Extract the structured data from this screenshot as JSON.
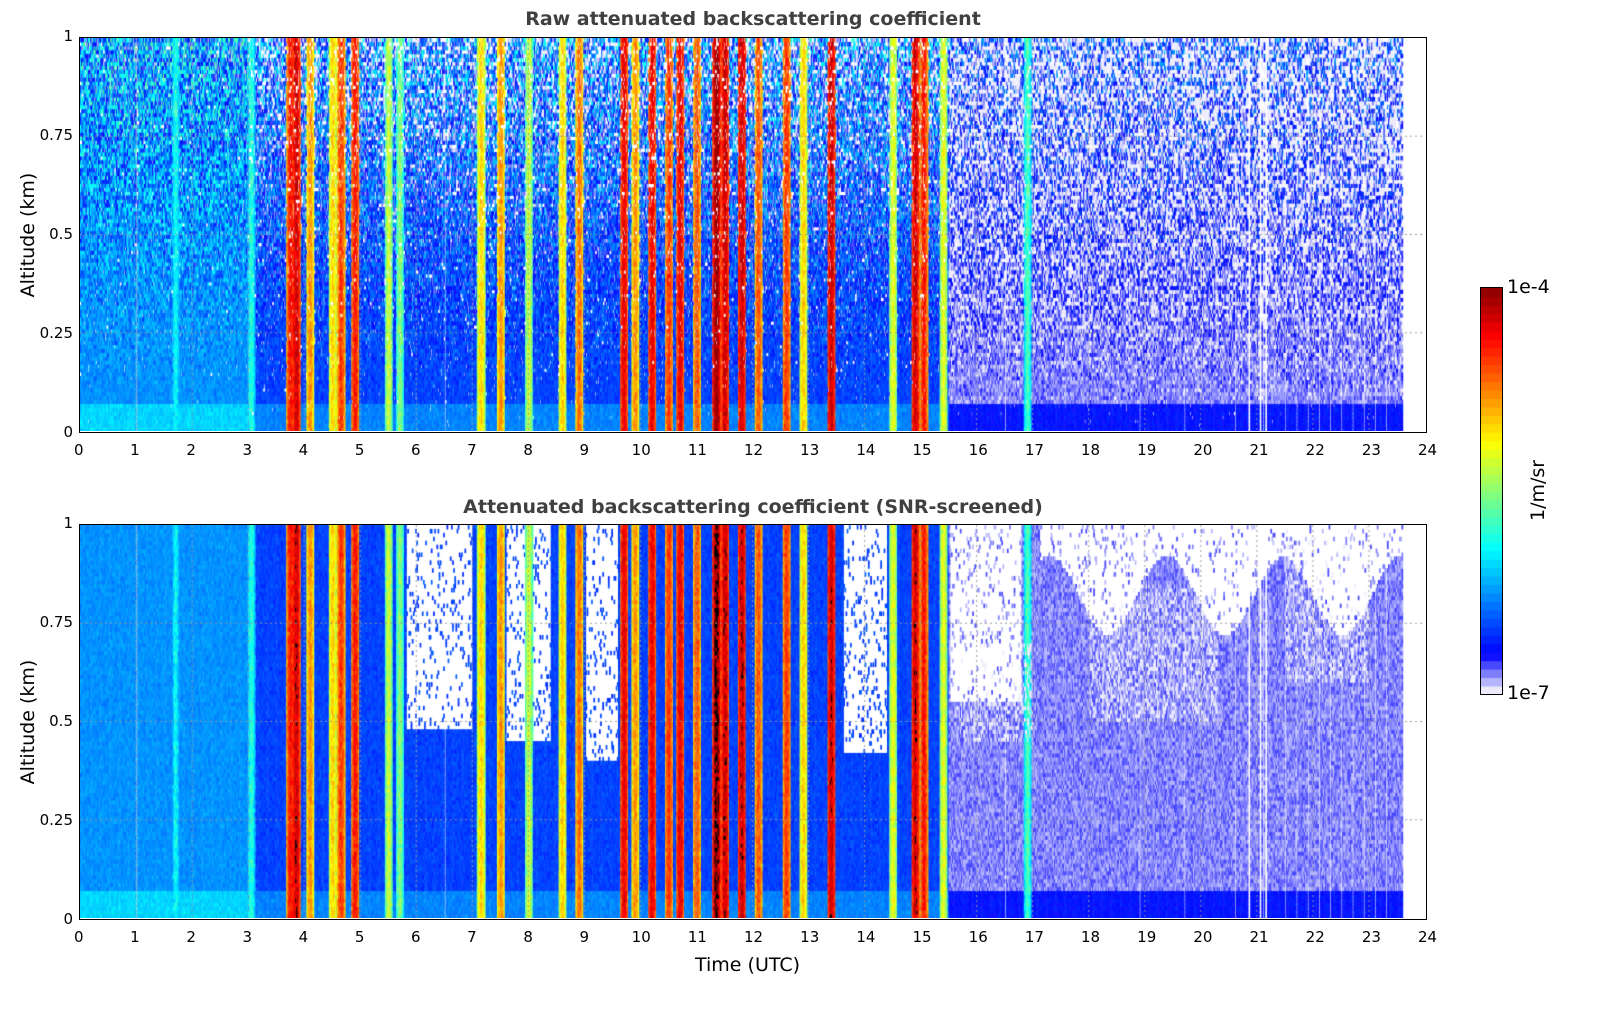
{
  "chart_data": [
    {
      "type": "heatmap",
      "title": "Raw attenuated backscattering coefficient",
      "xlabel": "",
      "ylabel": "Altitude (km)",
      "xlim": [
        0,
        24
      ],
      "ylim": [
        0,
        1
      ],
      "xticks": [
        0,
        1,
        2,
        3,
        4,
        5,
        6,
        7,
        8,
        9,
        10,
        11,
        12,
        13,
        14,
        15,
        16,
        17,
        18,
        19,
        20,
        21,
        22,
        23,
        24
      ],
      "yticks": [
        "0",
        "0.25",
        "0.5",
        "0.75",
        "1"
      ],
      "grid": true
    },
    {
      "type": "heatmap",
      "title": "Attenuated backscattering coefficient (SNR-screened)",
      "xlabel": "Time (UTC)",
      "ylabel": "Altitude (km)",
      "xlim": [
        0,
        24
      ],
      "ylim": [
        0,
        1
      ],
      "xticks": [
        0,
        1,
        2,
        3,
        4,
        5,
        6,
        7,
        8,
        9,
        10,
        11,
        12,
        13,
        14,
        15,
        16,
        17,
        18,
        19,
        20,
        21,
        22,
        23,
        24
      ],
      "yticks": [
        "0",
        "0.25",
        "0.5",
        "0.75",
        "1"
      ],
      "grid": true
    }
  ],
  "data_end_hour": 23.6,
  "cloud_features_log10": [
    [
      1.7,
      -5.9
    ],
    [
      3.05,
      -5.8
    ],
    [
      3.75,
      -4.4
    ],
    [
      3.85,
      -4.2
    ],
    [
      4.1,
      -4.8
    ],
    [
      4.5,
      -5.0
    ],
    [
      4.65,
      -4.5
    ],
    [
      4.9,
      -4.4
    ],
    [
      5.5,
      -5.3
    ],
    [
      5.7,
      -5.5
    ],
    [
      7.15,
      -5.0
    ],
    [
      7.5,
      -4.8
    ],
    [
      8.0,
      -5.3
    ],
    [
      8.6,
      -5.0
    ],
    [
      8.9,
      -4.7
    ],
    [
      9.7,
      -4.3
    ],
    [
      9.9,
      -4.8
    ],
    [
      10.2,
      -4.3
    ],
    [
      10.5,
      -4.5
    ],
    [
      10.7,
      -4.3
    ],
    [
      11.0,
      -4.6
    ],
    [
      11.35,
      -4.05
    ],
    [
      11.5,
      -4.2
    ],
    [
      11.8,
      -4.2
    ],
    [
      12.1,
      -4.6
    ],
    [
      12.6,
      -4.5
    ],
    [
      12.9,
      -5.0
    ],
    [
      13.4,
      -4.2
    ],
    [
      14.5,
      -5.2
    ],
    [
      14.9,
      -4.2
    ],
    [
      15.05,
      -4.4
    ],
    [
      15.4,
      -5.2
    ],
    [
      16.9,
      -5.7
    ]
  ],
  "colorbar": {
    "label": "1/m/sr",
    "max_label": "1e-4",
    "min_label": "1e-7",
    "log_min": -7,
    "log_max": -4
  }
}
